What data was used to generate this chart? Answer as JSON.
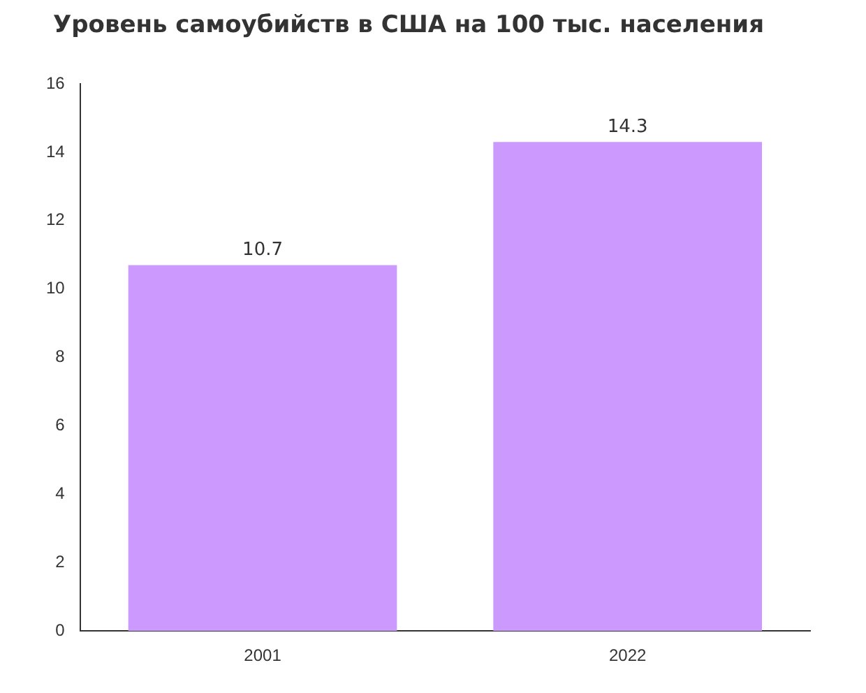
{
  "chart_data": {
    "type": "bar",
    "title": "Уровень самоубийств в США на 100 тыс. населения",
    "categories": [
      "2001",
      "2022"
    ],
    "values": [
      10.7,
      14.3
    ],
    "color": "#cc99ff",
    "ylim": [
      0,
      16
    ],
    "yticks": [
      0,
      2,
      4,
      6,
      8,
      10,
      12,
      14,
      16
    ],
    "grid": false,
    "legend": false,
    "data_labels": true
  }
}
